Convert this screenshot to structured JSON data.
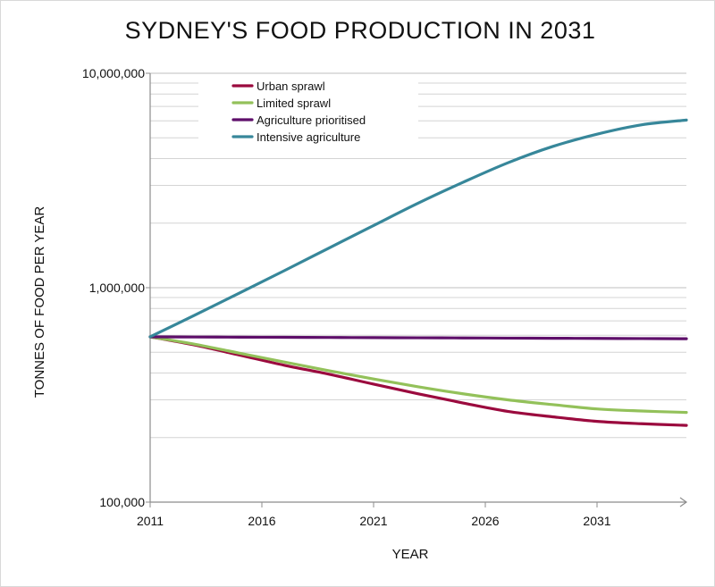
{
  "chart_data": {
    "type": "line",
    "title": "SYDNEY'S FOOD PRODUCTION IN 2031",
    "xlabel": "YEAR",
    "ylabel": "TONNES OF FOOD PER YEAR",
    "y_scale": "log",
    "ylim": [
      100000,
      10000000
    ],
    "xlim": [
      2011,
      2035
    ],
    "x_ticks": [
      "2011",
      "2016",
      "2021",
      "2026",
      "2031"
    ],
    "y_ticks": [
      "100,000",
      "1,000,000",
      "10,000,000"
    ],
    "grid": true,
    "legend_position": "top-left",
    "x": [
      2011,
      2013,
      2015,
      2017,
      2019,
      2021,
      2023,
      2025,
      2027,
      2029,
      2031,
      2033,
      2035
    ],
    "series": [
      {
        "name": "Urban sprawl",
        "color": "#9b0a3e",
        "values": [
          590000,
          540000,
          485000,
          435000,
          395000,
          355000,
          320000,
          290000,
          265000,
          250000,
          238000,
          232000,
          228000
        ]
      },
      {
        "name": "Limited sprawl",
        "color": "#93c15a",
        "values": [
          590000,
          545000,
          495000,
          450000,
          410000,
          375000,
          345000,
          320000,
          300000,
          285000,
          272000,
          266000,
          262000
        ]
      },
      {
        "name": "Agriculture prioritised",
        "color": "#5e0f6a",
        "values": [
          590000,
          589000,
          588000,
          587000,
          586000,
          585000,
          584000,
          583000,
          582000,
          581000,
          580000,
          579000,
          578000
        ]
      },
      {
        "name": "Intensive agriculture",
        "color": "#37879a",
        "values": [
          590000,
          745000,
          945000,
          1200000,
          1530000,
          1950000,
          2480000,
          3100000,
          3820000,
          4550000,
          5200000,
          5750000,
          6050000
        ]
      }
    ]
  }
}
